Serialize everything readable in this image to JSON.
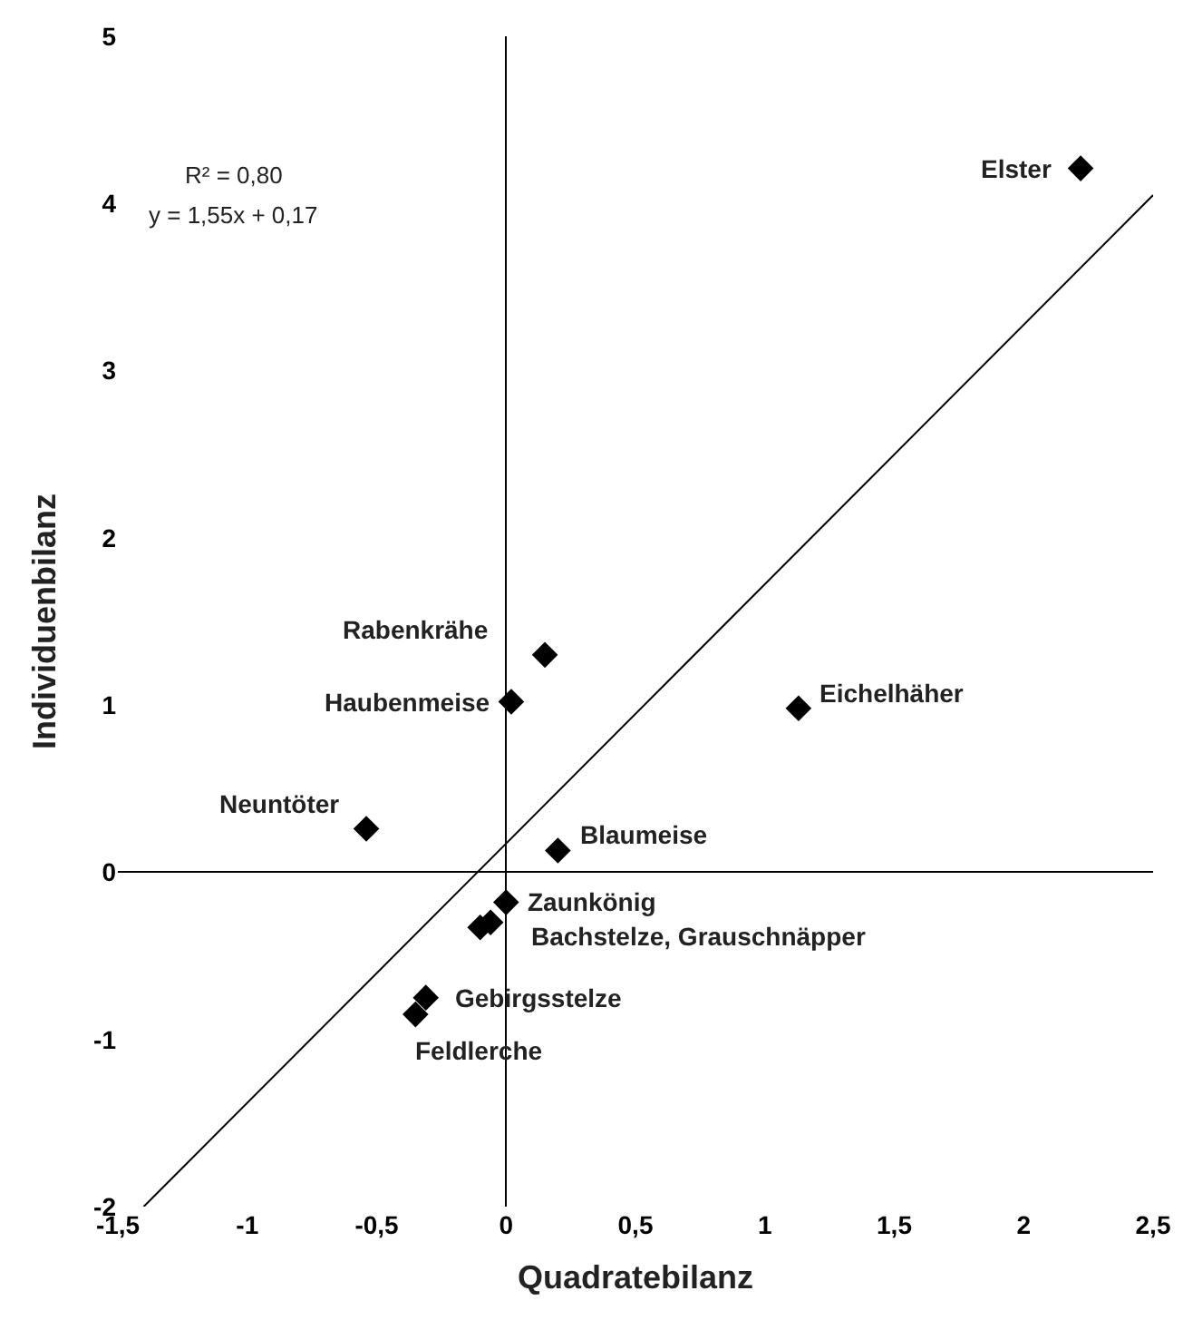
{
  "chart_data": {
    "type": "scatter",
    "xlabel": "Quadratebilanz",
    "ylabel": "Individuenbilanz",
    "series": [
      {
        "color": "#000000",
        "marker": "diamond",
        "x": [
          2.22,
          0.15,
          0.02,
          1.13,
          -0.54,
          0.2,
          0.0,
          -0.06,
          -0.1,
          -0.31,
          -0.35
        ],
        "values": [
          4.21,
          1.3,
          1.02,
          0.98,
          0.26,
          0.13,
          -0.18,
          -0.3,
          -0.33,
          -0.75,
          -0.85
        ]
      },
      {
        "type": "line",
        "color": "#000000",
        "marker": "none",
        "x": [
          -1.4,
          2.5
        ],
        "values": [
          -2.0,
          4.05
        ]
      }
    ],
    "annotations": [
      {
        "text": "Elster",
        "x": 2.22,
        "y": 4.21
      },
      {
        "text": "Rabenkrähe",
        "x": 0.15,
        "y": 1.3
      },
      {
        "text": "Haubenmeise",
        "x": 0.02,
        "y": 1.02
      },
      {
        "text": "Eichelhäher",
        "x": 1.13,
        "y": 0.98
      },
      {
        "text": "Neuntöter",
        "x": -0.54,
        "y": 0.26
      },
      {
        "text": "Blaumeise",
        "x": 0.2,
        "y": 0.13
      },
      {
        "text": "Zaunkönig",
        "x": 0.0,
        "y": -0.18
      },
      {
        "text": "Bachstelze, Grauschnäpper",
        "x": -0.06,
        "y": -0.3
      },
      {
        "text": "Gebirgsstelze",
        "x": -0.31,
        "y": -0.75
      },
      {
        "text": "Feldlerche",
        "x": -0.35,
        "y": -0.85
      },
      "R² = 0,80",
      "y = 1,55x + 0,17"
    ],
    "xlim": [
      -1.5,
      2.5
    ],
    "xticks": [
      {
        "value": -1.5,
        "label": "-1,5"
      },
      -1,
      {
        "value": -0.5,
        "label": "-0,5"
      },
      0,
      {
        "value": 0.5,
        "label": "0,5"
      },
      1,
      {
        "value": 1.5,
        "label": "1,5"
      },
      2,
      {
        "value": 2.5,
        "label": "2,5"
      }
    ],
    "ylim": [
      -2,
      5
    ],
    "yticks": [
      -2,
      -1,
      0,
      1,
      2,
      3,
      4,
      5
    ]
  }
}
